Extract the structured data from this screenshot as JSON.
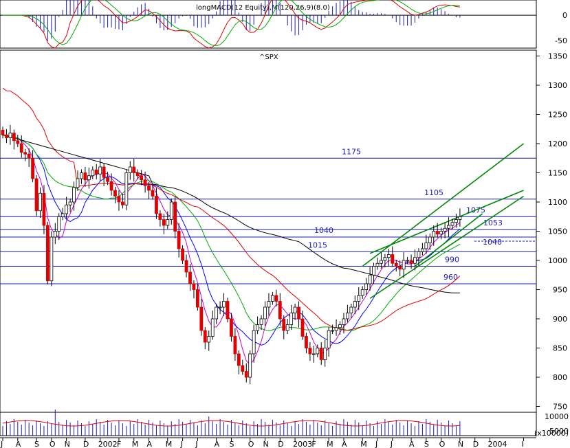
{
  "chart_data": {
    "type": "candlestick",
    "title": "^SPX",
    "macd_title": "longMACD(12 Equity),M(120,26,9)(8.0)",
    "price_axis": {
      "ticks": [
        "1350",
        "1300",
        "1250",
        "1200",
        "1150",
        "1100",
        "1050",
        "1000",
        "950",
        "900",
        "850",
        "800",
        "750"
      ],
      "ylim": [
        740,
        1360
      ]
    },
    "macd_axis": {
      "ticks": [
        "0",
        "-50"
      ],
      "ylim": [
        -65,
        30
      ]
    },
    "volume_axis": {
      "ticks": [
        "10000",
        "5000"
      ],
      "unit": "(x10000)"
    },
    "x_labels": [
      {
        "label": "J",
        "i": 0
      },
      {
        "label": "A",
        "i": 4
      },
      {
        "label": "S",
        "i": 9
      },
      {
        "label": "O",
        "i": 13
      },
      {
        "label": "N",
        "i": 17
      },
      {
        "label": "D",
        "i": 22
      },
      {
        "label": "2002",
        "i": 26
      },
      {
        "label": "F",
        "i": 31
      },
      {
        "label": "M",
        "i": 35
      },
      {
        "label": "A",
        "i": 39
      },
      {
        "label": "M",
        "i": 44
      },
      {
        "label": "J",
        "i": 48
      },
      {
        "label": "J",
        "i": 52
      },
      {
        "label": "A",
        "i": 57
      },
      {
        "label": "S",
        "i": 61
      },
      {
        "label": "O",
        "i": 66
      },
      {
        "label": "N",
        "i": 70
      },
      {
        "label": "D",
        "i": 74
      },
      {
        "label": "2003",
        "i": 78
      },
      {
        "label": "F",
        "i": 83
      },
      {
        "label": "M",
        "i": 87
      },
      {
        "label": "A",
        "i": 91
      },
      {
        "label": "M",
        "i": 96
      },
      {
        "label": "J",
        "i": 100
      },
      {
        "label": "J",
        "i": 104
      },
      {
        "label": "A",
        "i": 109
      },
      {
        "label": "S",
        "i": 113
      },
      {
        "label": "O",
        "i": 117
      },
      {
        "label": "N",
        "i": 122
      },
      {
        "label": "D",
        "i": 126
      },
      {
        "label": "2004",
        "i": 130
      },
      {
        "label": "I",
        "i": 139
      }
    ],
    "levels": [
      {
        "value": 1175,
        "label": "1175"
      },
      {
        "value": 1105,
        "label": "1105"
      },
      {
        "value": 1075,
        "label": "1075"
      },
      {
        "value": 1053,
        "label": "1053"
      },
      {
        "value": 1040,
        "label": "1040"
      },
      {
        "value": 1015,
        "label": "1015"
      },
      {
        "value": 990,
        "label": "990"
      },
      {
        "value": 960,
        "label": "960"
      }
    ],
    "extra_level_labels": [
      {
        "value": 1033,
        "label": "1040"
      }
    ],
    "trendlines": [
      {
        "i1": 96,
        "v1": 990,
        "i2": 139,
        "v2": 1200
      },
      {
        "i1": 98,
        "v1": 1012,
        "i2": 139,
        "v2": 1120
      },
      {
        "i1": 98,
        "v1": 935,
        "i2": 139,
        "v2": 1110
      },
      {
        "i1": 110,
        "v1": 990,
        "i2": 128,
        "v2": 1080
      }
    ],
    "closes": [
      1215,
      1210,
      1218,
      1205,
      1200,
      1185,
      1182,
      1175,
      1140,
      1085,
      1115,
      1060,
      965,
      1040,
      1050,
      1075,
      1080,
      1095,
      1100,
      1125,
      1140,
      1150,
      1138,
      1145,
      1155,
      1148,
      1160,
      1142,
      1135,
      1120,
      1110,
      1100,
      1095,
      1150,
      1160,
      1150,
      1145,
      1138,
      1128,
      1120,
      1110,
      1080,
      1070,
      1060,
      1070,
      1100,
      1050,
      1020,
      1000,
      980,
      960,
      950,
      920,
      880,
      860,
      870,
      900,
      920,
      920,
      930,
      900,
      870,
      840,
      820,
      810,
      800,
      840,
      880,
      890,
      900,
      920,
      930,
      940,
      930,
      900,
      880,
      890,
      910,
      920,
      900,
      870,
      850,
      840,
      840,
      850,
      830,
      850,
      880,
      880,
      885,
      890,
      900,
      910,
      920,
      930,
      940,
      950,
      960,
      975,
      990,
      995,
      1000,
      1005,
      1010,
      995,
      990,
      985,
      1000,
      1000,
      995,
      1005,
      1015,
      1020,
      1030,
      1040,
      1050,
      1045,
      1050,
      1055,
      1060,
      1065,
      1070,
      1075
    ]
  }
}
